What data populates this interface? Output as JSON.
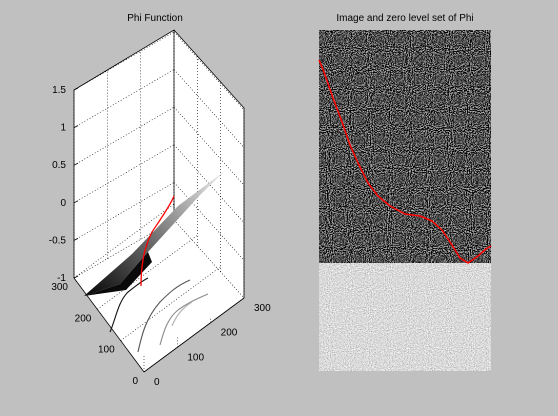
{
  "figure": {
    "background": "#c0c0c0",
    "line_color": "#ff0000"
  },
  "chart_data": [
    {
      "type": "surface",
      "title": "Phi Function",
      "xlabel": "",
      "ylabel": "",
      "zlabel": "",
      "grid": true,
      "colormap": "gray",
      "zlim": [
        -1,
        1.5
      ],
      "z_ticks": [
        "-1",
        "-0.5",
        "0",
        "0.5",
        "1",
        "1.5"
      ],
      "x_ticks": [
        "0",
        "100",
        "200",
        "300"
      ],
      "y_ticks": [
        "0",
        "100",
        "200",
        "300"
      ],
      "zero_level_set_color": "#ff0000",
      "contour_levels": [
        -1,
        -0.75,
        -0.5,
        -0.25
      ]
    },
    {
      "type": "image",
      "title": "Image and zero level set of Phi",
      "colormap": "gray",
      "regions": [
        {
          "name": "dark-noise",
          "mean_gray": 0.35
        },
        {
          "name": "light-noise",
          "mean_gray": 0.7
        }
      ],
      "contour_color": "#ff0000",
      "contour_label": "zero level set"
    }
  ]
}
